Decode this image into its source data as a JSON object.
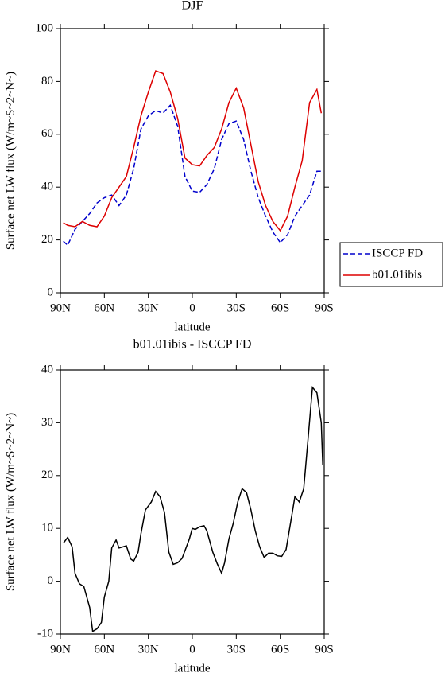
{
  "chart_data": [
    {
      "type": "line",
      "title": "DJF",
      "xlabel": "latitude",
      "ylabel": "Surface net LW flux (W/m~S~2~N~)",
      "x": [
        88,
        85,
        80,
        75,
        70,
        65,
        60,
        55,
        50,
        45,
        40,
        35,
        30,
        25,
        20,
        15,
        10,
        5,
        0,
        -5,
        -10,
        -15,
        -20,
        -25,
        -30,
        -35,
        -40,
        -45,
        -50,
        -55,
        -60,
        -65,
        -70,
        -75,
        -80,
        -85,
        -88
      ],
      "xlim": [
        90,
        -90
      ],
      "xticks": [
        {
          "value": 90,
          "label": "90N"
        },
        {
          "value": 60,
          "label": "60N"
        },
        {
          "value": 30,
          "label": "30N"
        },
        0,
        {
          "value": -30,
          "label": "30S"
        },
        {
          "value": -60,
          "label": "60S"
        },
        {
          "value": -90,
          "label": "90S"
        }
      ],
      "ylim": [
        0,
        100
      ],
      "yticks": [
        0,
        20,
        40,
        60,
        80,
        100
      ],
      "legend": "outside right",
      "series": [
        {
          "name": "ISCCP FD",
          "color": "#0000cc",
          "dash": "dashed",
          "values": [
            19.5,
            18,
            24,
            27,
            30,
            34,
            36,
            37,
            33,
            37,
            47,
            62,
            67,
            69,
            68,
            71,
            63,
            44,
            38.5,
            38,
            41,
            47,
            58,
            64,
            65,
            58,
            46,
            36,
            29,
            23,
            19,
            22,
            29,
            33,
            37,
            46,
            46
          ]
        },
        {
          "name": "b01.01ibis",
          "color": "#dd0000",
          "dash": "solid",
          "values": [
            26.5,
            25.5,
            25,
            27,
            25.5,
            25,
            29,
            36,
            40,
            44,
            55,
            67,
            76,
            84,
            83,
            76,
            66,
            51,
            48.5,
            48,
            52,
            55,
            62,
            72,
            77.5,
            70,
            56,
            42,
            33,
            27,
            23.5,
            29,
            40,
            50,
            72,
            77,
            68
          ]
        }
      ]
    },
    {
      "type": "line",
      "title": "b01.01ibis - ISCCP FD",
      "xlabel": "latitude",
      "ylabel": "Surface net LW flux (W/m~S~2~N~)",
      "x": [
        88,
        85,
        82,
        80,
        77,
        74,
        70,
        68,
        65,
        62,
        60,
        57,
        55,
        52,
        50,
        45,
        42,
        40,
        37,
        35,
        32,
        28,
        25,
        22,
        19,
        16,
        13,
        10,
        7,
        4,
        2,
        0,
        -2,
        -5,
        -8,
        -10,
        -14,
        -17,
        -20,
        -22,
        -25,
        -28,
        -31,
        -34,
        -37,
        -40,
        -43,
        -46,
        -49,
        -52,
        -55,
        -58,
        -61,
        -64,
        -67,
        -70,
        -73,
        -76,
        -79,
        -82,
        -85,
        -88,
        -89
      ],
      "xlim": [
        90,
        -90
      ],
      "xticks": [
        {
          "value": 90,
          "label": "90N"
        },
        {
          "value": 60,
          "label": "60N"
        },
        {
          "value": 30,
          "label": "30N"
        },
        0,
        {
          "value": -30,
          "label": "30S"
        },
        {
          "value": -60,
          "label": "60S"
        },
        {
          "value": -90,
          "label": "90S"
        }
      ],
      "ylim": [
        -10,
        40
      ],
      "yticks": [
        -10,
        0,
        10,
        20,
        30,
        40
      ],
      "series": [
        {
          "name": "b01.01ibis - ISCCP FD",
          "color": "#000000",
          "dash": "solid",
          "values": [
            7.2,
            8.3,
            6.5,
            1.5,
            -0.5,
            -1,
            -5,
            -9.5,
            -9,
            -7.8,
            -3,
            0,
            6.3,
            7.8,
            6.3,
            6.7,
            4.2,
            3.8,
            5.5,
            9,
            13.5,
            15,
            17,
            16,
            13,
            5.5,
            3.2,
            3.5,
            4.3,
            6.5,
            8,
            10,
            9.8,
            10.3,
            10.5,
            9.5,
            5.5,
            3.3,
            1.5,
            3.5,
            8,
            11,
            15,
            17.5,
            16.8,
            13.5,
            9.5,
            6.5,
            4.5,
            5.3,
            5.3,
            4.8,
            4.7,
            6,
            11,
            16,
            15,
            17.5,
            27,
            36.7,
            35.7,
            30,
            22
          ]
        }
      ]
    }
  ]
}
